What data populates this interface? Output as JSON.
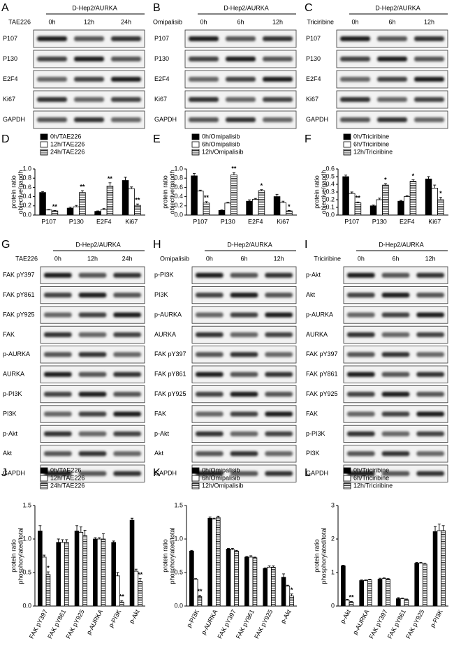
{
  "blots": [
    {
      "panel": "A",
      "title": "D-Hep2/AURKA",
      "drug": "TAE226",
      "times": [
        "0h",
        "12h",
        "24h"
      ],
      "rows": [
        "P107",
        "P130",
        "E2F4",
        "Ki67",
        "GAPDH"
      ]
    },
    {
      "panel": "B",
      "title": "D-Hep2/AURKA",
      "drug": "Omipalisib",
      "times": [
        "0h",
        "6h",
        "12h"
      ],
      "rows": [
        "P107",
        "P130",
        "E2F4",
        "Ki67",
        "GAPDH"
      ]
    },
    {
      "panel": "C",
      "title": "D-Hep2/AURKA",
      "drug": "Triciribine",
      "times": [
        "0h",
        "6h",
        "12h"
      ],
      "rows": [
        "P107",
        "P130",
        "E2F4",
        "Ki67",
        "GAPDH"
      ]
    },
    {
      "panel": "G",
      "title": "D-Hep2/AURKA",
      "drug": "TAE226",
      "times": [
        "0h",
        "12h",
        "24h"
      ],
      "rows": [
        "FAK pY397",
        "FAK pY861",
        "FAK pY925",
        "FAK",
        "p-AURKA",
        "AURKA",
        "p-PI3K",
        "PI3K",
        "p-Akt",
        "Akt",
        "GAPDH"
      ]
    },
    {
      "panel": "H",
      "title": "D-Hep2/AURKA",
      "drug": "Omipalisib",
      "times": [
        "0h",
        "6h",
        "12h"
      ],
      "rows": [
        "p-PI3K",
        "PI3K",
        "p-AURKA",
        "AURKA",
        "FAK pY397",
        "FAK pY861",
        "FAK pY925",
        "FAK",
        "p-Akt",
        "Akt",
        "GAPDH"
      ]
    },
    {
      "panel": "I",
      "title": "D-Hep2/AURKA",
      "drug": "Triciribine",
      "times": [
        "0h",
        "6h",
        "12h"
      ],
      "rows": [
        "p-Akt",
        "Akt",
        "p-AURKA",
        "AURKA",
        "FAK pY397",
        "FAK pY861",
        "FAK pY925",
        "FAK",
        "p-PI3K",
        "PI3K",
        "GAPDH"
      ]
    }
  ],
  "chart_data": [
    {
      "type": "bar",
      "panel": "D",
      "ylabel": [
        "protein ratio",
        "objective/gapdh"
      ],
      "categories": [
        "P107",
        "P130",
        "E2F4",
        "Ki67"
      ],
      "ylim": [
        0,
        1.0
      ],
      "yticks": [
        {
          "value": 0,
          "label": "0.0"
        },
        0.2,
        0.4,
        0.6,
        0.8,
        {
          "value": 1,
          "label": "1.0"
        }
      ],
      "series": [
        {
          "name": "0h/TAE226",
          "color": "#000000",
          "values": [
            0.49,
            0.15,
            0.08,
            0.75
          ],
          "errors": [
            0.02,
            0.02,
            0.01,
            0.07
          ]
        },
        {
          "name": "12h/TAE226",
          "color": "#ffffff",
          "values": [
            0.11,
            0.18,
            0.12,
            0.57
          ],
          "errors": [
            0.01,
            0.03,
            0.02,
            0.04
          ]
        },
        {
          "name": "24h/TAE226",
          "color": "#ffffff",
          "hatch": true,
          "values": [
            0.09,
            0.49,
            0.63,
            0.21
          ],
          "errors": [
            0.01,
            0.04,
            0.07,
            0.03
          ],
          "annotations": [
            "**",
            "**",
            "**",
            "**"
          ]
        }
      ]
    },
    {
      "type": "bar",
      "panel": "E",
      "ylabel": [
        "protein ratio",
        "objective/gapdh"
      ],
      "categories": [
        "P107",
        "P130",
        "E2F4",
        "Ki67"
      ],
      "ylim": [
        0,
        1.0
      ],
      "yticks": [
        {
          "value": 0,
          "label": "0.0"
        },
        0.2,
        0.4,
        0.6,
        0.8,
        {
          "value": 1,
          "label": "1.0"
        }
      ],
      "series": [
        {
          "name": "0h/Omipalisib",
          "color": "#000000",
          "values": [
            0.85,
            0.1,
            0.3,
            0.4
          ],
          "errors": [
            0.05,
            0.01,
            0.03,
            0.05
          ]
        },
        {
          "name": "6h/Omipalisib",
          "color": "#ffffff",
          "values": [
            0.52,
            0.26,
            0.34,
            0.27
          ],
          "errors": [
            0.02,
            0.02,
            0.02,
            0.03
          ]
        },
        {
          "name": "12h/Omipalisib",
          "color": "#ffffff",
          "hatch": true,
          "values": [
            0.26,
            0.87,
            0.53,
            0.09
          ],
          "errors": [
            0.03,
            0.05,
            0.02,
            0.01
          ],
          "annotations": [
            "**",
            "**",
            "*",
            "*"
          ]
        }
      ]
    },
    {
      "type": "bar",
      "panel": "F",
      "ylabel": [
        "protein ratio",
        "objective/gapdh"
      ],
      "categories": [
        "P107",
        "P130",
        "E2F4",
        "Ki67"
      ],
      "ylim": [
        0,
        0.6
      ],
      "yticks": [
        {
          "value": 0,
          "label": "0.0"
        },
        0.1,
        0.2,
        0.3,
        0.4,
        0.5,
        0.6
      ],
      "series": [
        {
          "name": "0h/Triciribine",
          "color": "#000000",
          "values": [
            0.5,
            0.12,
            0.18,
            0.47
          ],
          "errors": [
            0.02,
            0.01,
            0.01,
            0.03
          ]
        },
        {
          "name": "6h/Triciribine",
          "color": "#ffffff",
          "values": [
            0.28,
            0.2,
            0.24,
            0.35
          ],
          "errors": [
            0.02,
            0.02,
            0.01,
            0.04
          ]
        },
        {
          "name": "12h/Triciribine",
          "color": "#ffffff",
          "hatch": true,
          "values": [
            0.16,
            0.39,
            0.44,
            0.2
          ],
          "errors": [
            0.01,
            0.02,
            0.02,
            0.03
          ],
          "annotations": [
            "**",
            "*",
            "*",
            "*"
          ]
        }
      ]
    },
    {
      "type": "bar",
      "panel": "J",
      "ylabel": [
        "protein ratio",
        "phosphorylated/total"
      ],
      "categories": [
        "FAK pY397",
        "FAK pY861",
        "FAK pY925",
        "p-AURKA",
        "p-PI3K",
        "p-Akt"
      ],
      "ylim": [
        0,
        1.5
      ],
      "yticks": [
        {
          "value": 0,
          "label": "0.0"
        },
        0.5,
        {
          "value": 1,
          "label": "1.0"
        },
        1.5
      ],
      "series": [
        {
          "name": "0h/TAE226",
          "color": "#000000",
          "values": [
            1.12,
            0.95,
            1.12,
            1.0,
            0.95,
            1.28
          ],
          "errors": [
            0.08,
            0.05,
            0.08,
            0.02,
            0.02,
            0.03
          ]
        },
        {
          "name": "12h/TAE226",
          "color": "#ffffff",
          "values": [
            0.73,
            0.95,
            1.1,
            1.0,
            0.45,
            0.52
          ],
          "errors": [
            0.03,
            0.04,
            0.08,
            0.02,
            0.05,
            0.03
          ]
        },
        {
          "name": "24h/TAE226",
          "color": "#ffffff",
          "hatch": true,
          "values": [
            0.47,
            0.95,
            1.05,
            1.0,
            0.06,
            0.37
          ],
          "errors": [
            0.04,
            0.04,
            0.08,
            0.08,
            0.02,
            0.04
          ],
          "annotations": [
            "*",
            null,
            null,
            null,
            "**",
            "**"
          ]
        }
      ]
    },
    {
      "type": "bar",
      "panel": "K",
      "ylabel": [
        "protein ratio",
        "phosphorylated/total"
      ],
      "categories": [
        "p-PI3K",
        "p-AURKA",
        "FAK pY397",
        "FAK pY861",
        "FAK pY925",
        "p-Akt"
      ],
      "ylim": [
        0,
        1.5
      ],
      "yticks": [
        {
          "value": 0,
          "label": "0.0"
        },
        0.5,
        {
          "value": 1,
          "label": "1.0"
        },
        1.5
      ],
      "series": [
        {
          "name": "0h/Omipalisib",
          "color": "#000000",
          "values": [
            0.82,
            1.31,
            0.85,
            0.73,
            0.56,
            0.43
          ],
          "errors": [
            0.01,
            0.02,
            0.01,
            0.01,
            0.01,
            0.05
          ]
        },
        {
          "name": "6h/Omipalisib",
          "color": "#ffffff",
          "values": [
            0.4,
            1.3,
            0.84,
            0.73,
            0.58,
            0.3
          ],
          "errors": [
            0.01,
            0.01,
            0.02,
            0.02,
            0.02,
            0.01
          ]
        },
        {
          "name": "12h/Omipalisib",
          "color": "#ffffff",
          "hatch": true,
          "values": [
            0.14,
            1.32,
            0.82,
            0.72,
            0.58,
            0.15
          ],
          "errors": [
            0.02,
            0.02,
            0.01,
            0.01,
            0.02,
            0.03
          ],
          "annotations": [
            "**",
            null,
            null,
            null,
            null,
            "*"
          ]
        }
      ]
    },
    {
      "type": "bar",
      "panel": "L",
      "ylabel": [
        "protein ratio",
        "phosphorylated/total"
      ],
      "categories": [
        "p-Akt",
        "p-AURKA",
        "FAK pY397",
        "FAK pY861",
        "FAK pY925",
        "p-PI3K"
      ],
      "ylim": [
        0,
        3
      ],
      "yticks": [
        0,
        1,
        2,
        3
      ],
      "series": [
        {
          "name": "0h/Triciribine",
          "color": "#000000",
          "values": [
            1.2,
            0.76,
            0.8,
            0.22,
            1.28,
            2.22
          ],
          "errors": [
            0.02,
            0.02,
            0.03,
            0.03,
            0.02,
            0.15
          ]
        },
        {
          "name": "6h/Triciribine",
          "color": "#ffffff",
          "values": [
            0.18,
            0.76,
            0.82,
            0.22,
            1.28,
            2.25
          ],
          "errors": [
            0.02,
            0.02,
            0.02,
            0.02,
            0.02,
            0.2
          ]
        },
        {
          "name": "12h/Triciribine",
          "color": "#ffffff",
          "hatch": true,
          "values": [
            0.12,
            0.78,
            0.8,
            0.19,
            1.25,
            2.25
          ],
          "errors": [
            0.02,
            0.02,
            0.02,
            0.02,
            0.03,
            0.15
          ],
          "annotations": [
            "**",
            null,
            null,
            null,
            null,
            null
          ]
        }
      ]
    }
  ]
}
